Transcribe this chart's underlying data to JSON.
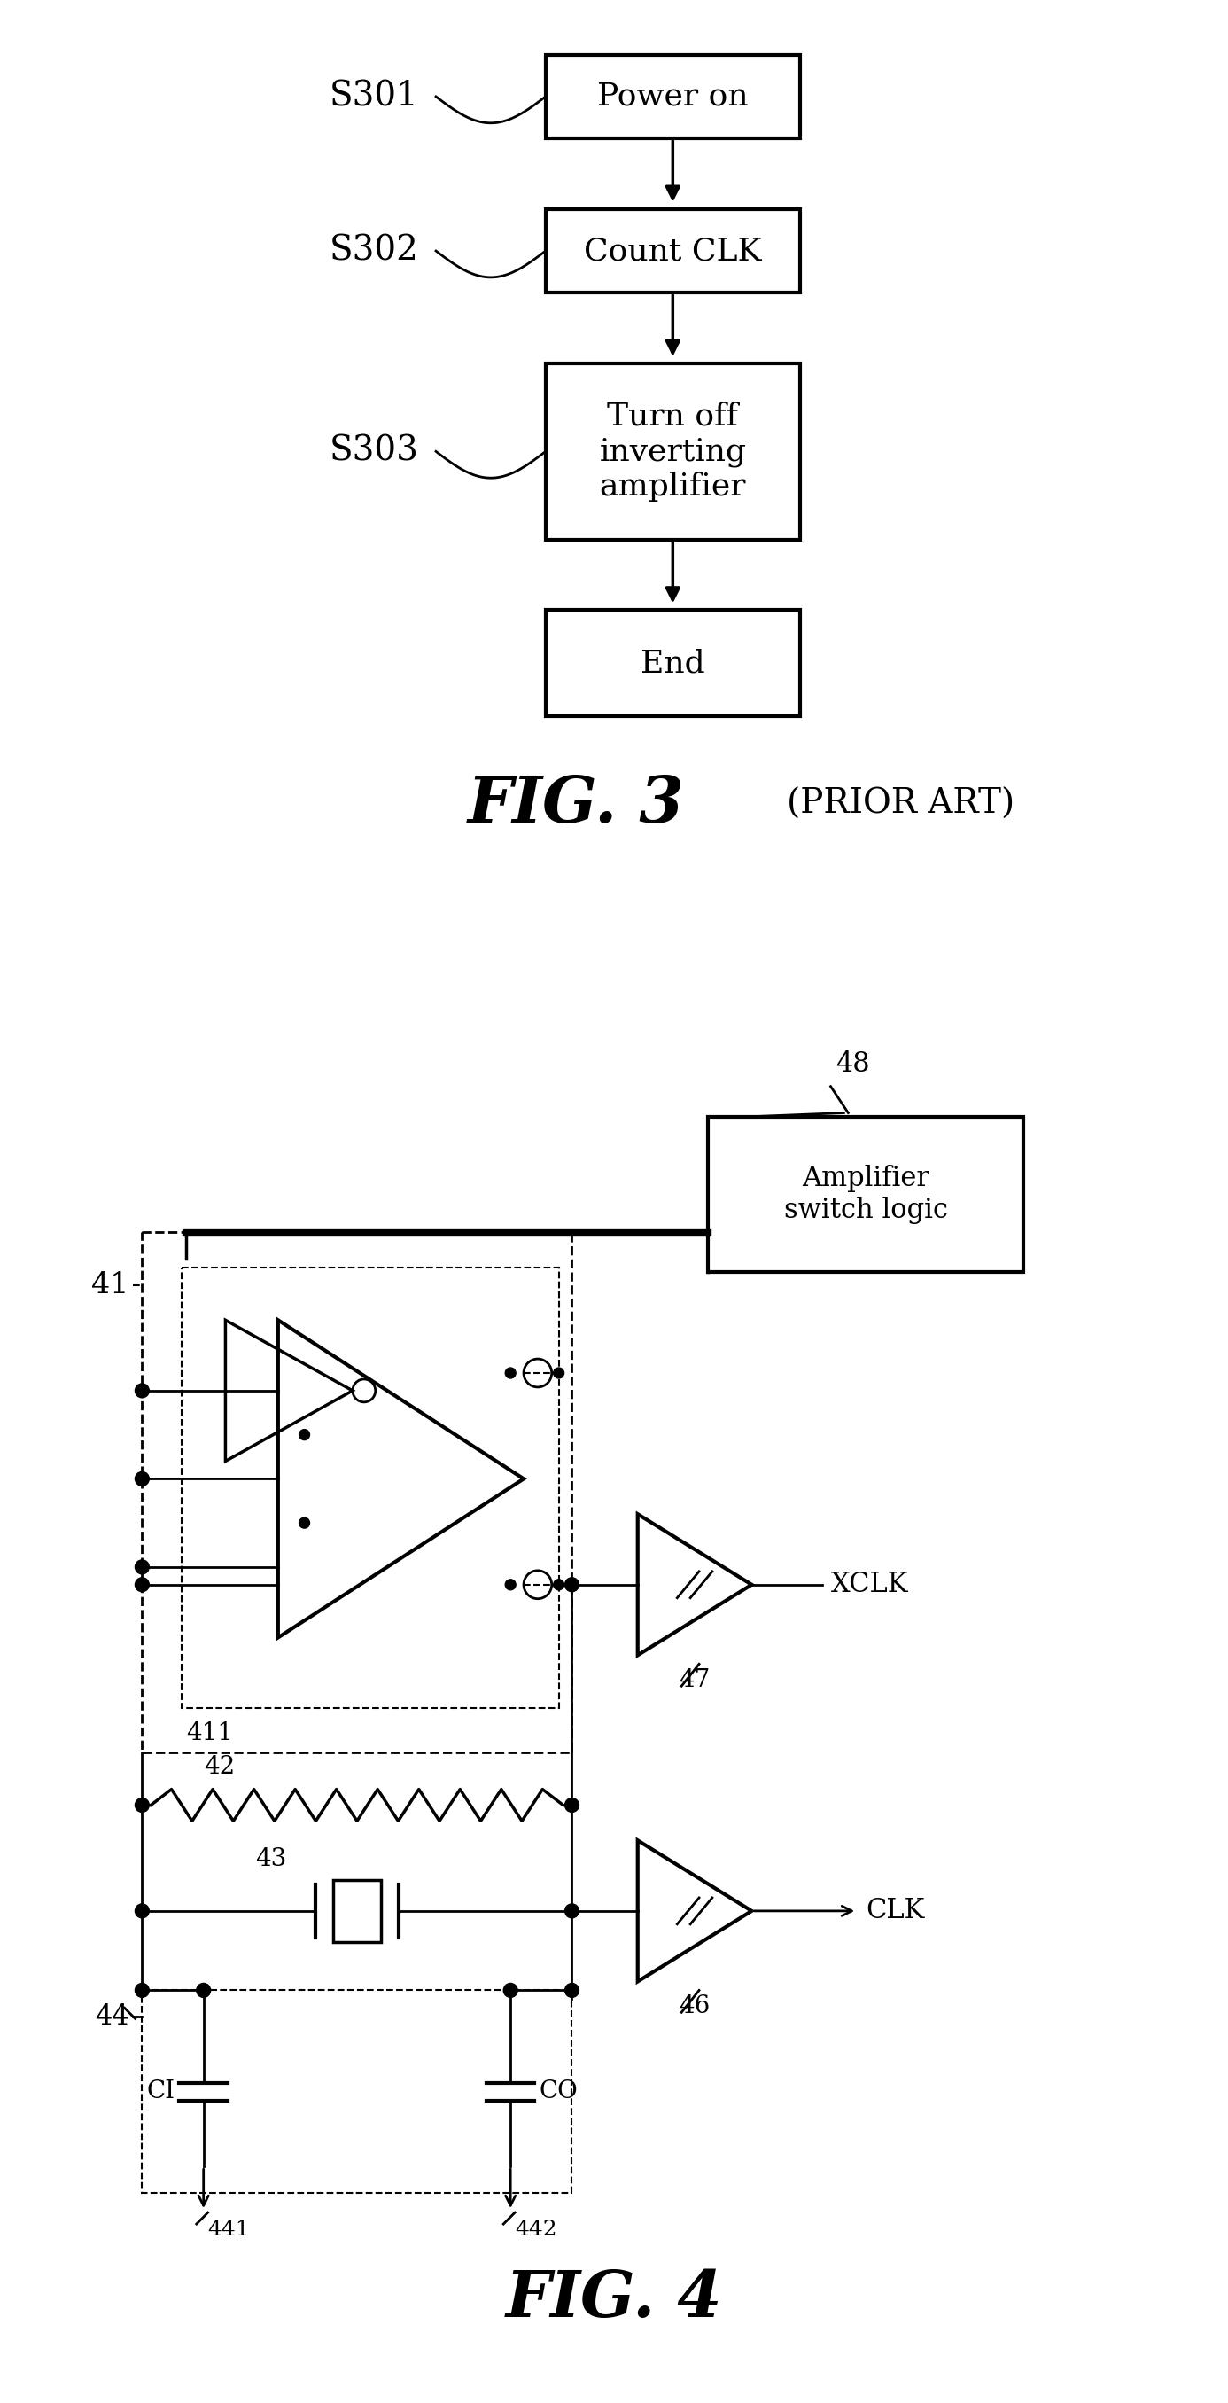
{
  "fig_width": 13.86,
  "fig_height": 27.11,
  "bg_color": "#ffffff",
  "fig3": {
    "box1_label": "Power on",
    "box2_label": "Count CLK",
    "box3_label": "Turn off\ninverting\namplifier",
    "box4_label": "End",
    "step1": "S301",
    "step2": "S302",
    "step3": "S303",
    "caption": "FIG. 3",
    "caption2": "(PRIOR ART)"
  },
  "fig4": {
    "label_41": "41",
    "label_411": "411",
    "label_42": "42",
    "label_43": "43",
    "label_44": "44",
    "label_46": "46",
    "label_47": "47",
    "label_48": "48",
    "label_CI": "CI",
    "label_CO": "CO",
    "label_441": "441",
    "label_442": "442",
    "label_XCLK": "XCLK",
    "label_CLK": "CLK",
    "box48_text": "Amplifier\nswitch logic",
    "caption": "FIG. 4"
  }
}
